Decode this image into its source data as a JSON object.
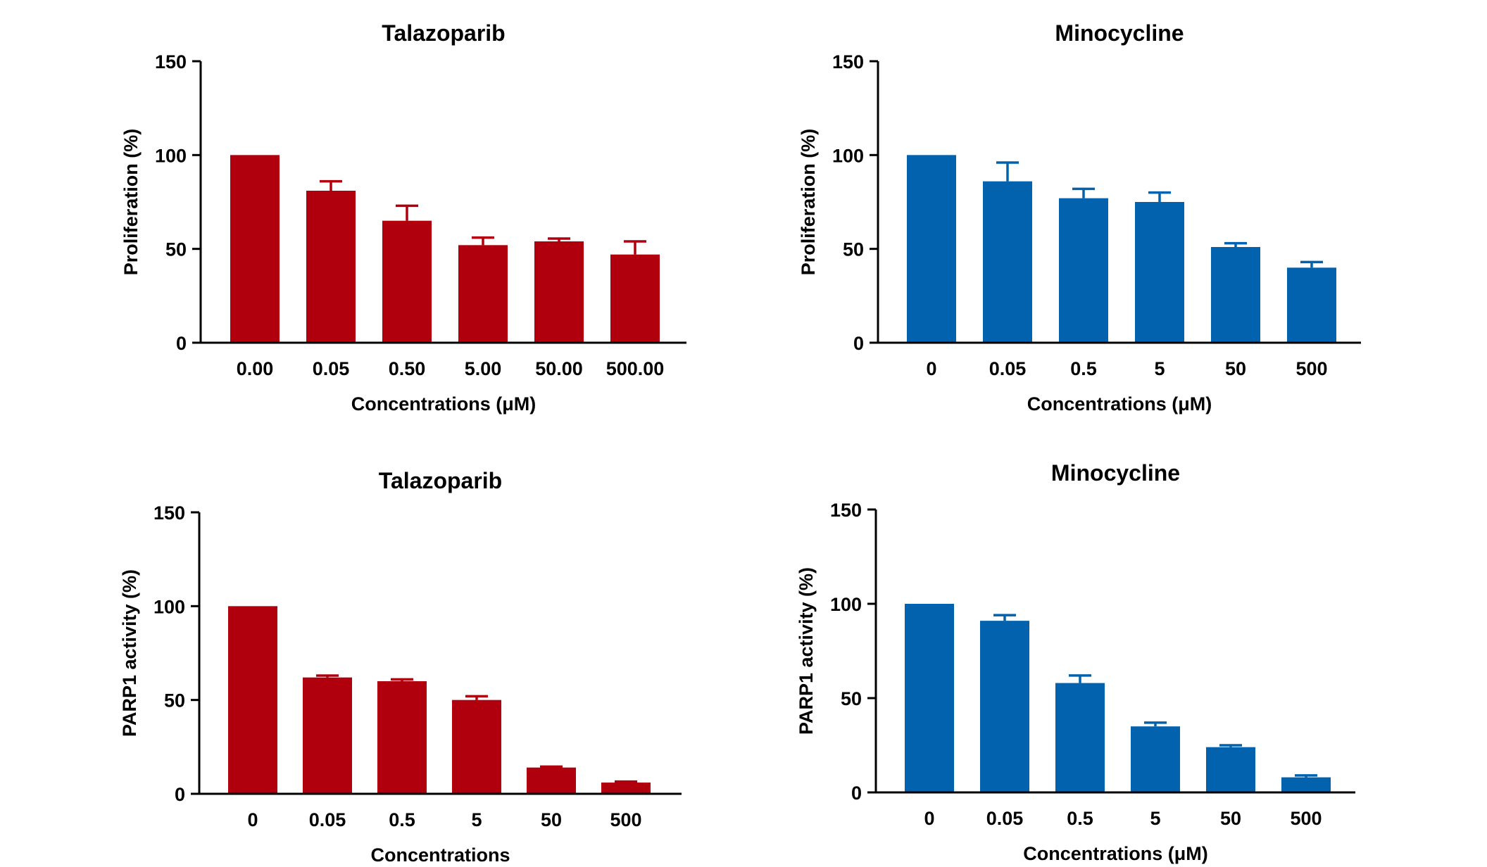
{
  "chart_data": [
    {
      "type": "bar",
      "title": "Talazoparib",
      "xlabel": "Concentrations (μM)",
      "ylabel": "Proliferation (%)",
      "categories": [
        "0.00",
        "0.05",
        "0.50",
        "5.00",
        "50.00",
        "500.00"
      ],
      "values": [
        100,
        81,
        65,
        52,
        54,
        47
      ],
      "errors": [
        0,
        5,
        8,
        4,
        1.5,
        7
      ],
      "ylim": [
        0,
        150
      ],
      "yticks": [
        "0",
        "50",
        "100",
        "150"
      ],
      "color": "#B0000E",
      "grid": false
    },
    {
      "type": "bar",
      "title": "Minocycline",
      "xlabel": "Concentrations (μM)",
      "ylabel": "Proliferation (%)",
      "categories": [
        "0",
        "0.05",
        "0.5",
        "5",
        "50",
        "500"
      ],
      "values": [
        100,
        86,
        77,
        75,
        51,
        40
      ],
      "errors": [
        0,
        10,
        5,
        5,
        2,
        3
      ],
      "ylim": [
        0,
        150
      ],
      "yticks": [
        "0",
        "50",
        "100",
        "150"
      ],
      "color": "#0262AE",
      "grid": false
    },
    {
      "type": "bar",
      "title": "Talazoparib",
      "xlabel": "Concentrations",
      "ylabel": "PARP1 activity (%)",
      "categories": [
        "0",
        "0.05",
        "0.5",
        "5",
        "50",
        "500"
      ],
      "values": [
        100,
        62,
        60,
        50,
        14,
        6
      ],
      "errors": [
        0,
        1,
        1,
        2,
        0.5,
        0.5
      ],
      "ylim": [
        0,
        150
      ],
      "yticks": [
        "0",
        "50",
        "100",
        "150"
      ],
      "color": "#B0000E",
      "grid": false
    },
    {
      "type": "bar",
      "title": "Minocycline",
      "xlabel": "Concentrations (μM)",
      "ylabel": "PARP1 activity (%)",
      "categories": [
        "0",
        "0.05",
        "0.5",
        "5",
        "50",
        "500"
      ],
      "values": [
        100,
        91,
        58,
        35,
        24,
        8
      ],
      "errors": [
        0,
        3,
        4,
        2,
        1,
        1
      ],
      "ylim": [
        0,
        150
      ],
      "yticks": [
        "0",
        "50",
        "100",
        "150"
      ],
      "color": "#0262AE",
      "grid": false
    }
  ]
}
